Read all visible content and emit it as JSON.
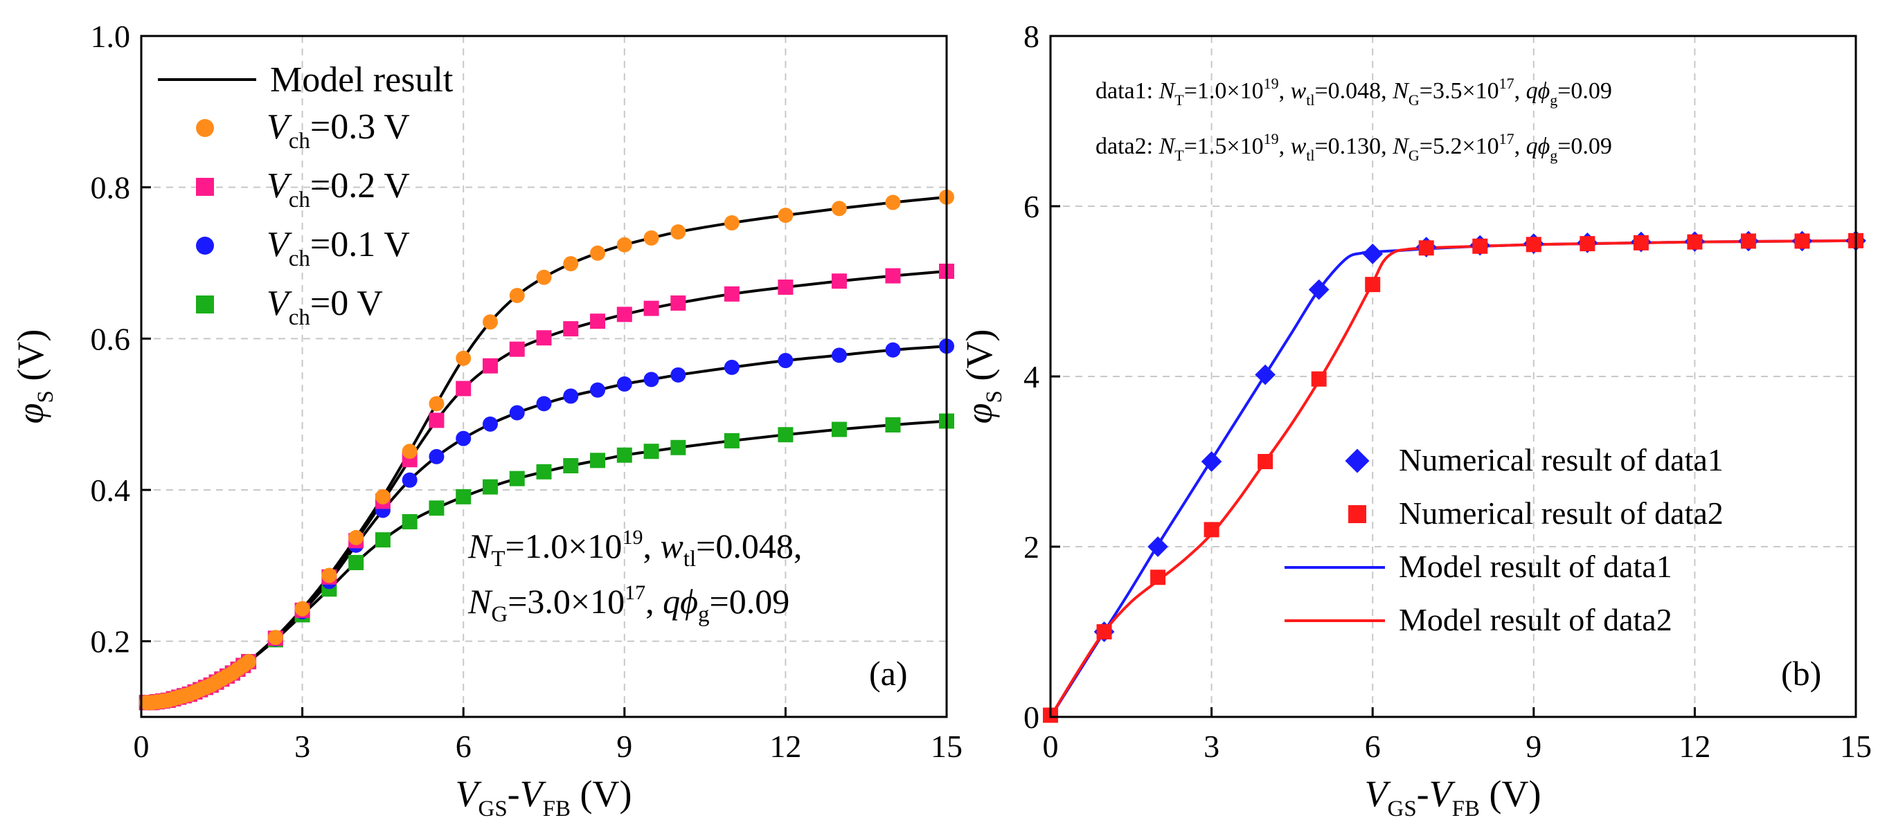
{
  "chart_data": [
    {
      "type": "line",
      "panel_label": "(a)",
      "xlabel": "VGS-VFB (V)",
      "xlabel_parts": {
        "v1": "V",
        "s1": "GS",
        "dash": "-",
        "v2": "V",
        "s2": "FB",
        "unit": " (V)"
      },
      "ylabel": "φS (V)",
      "ylabel_parts": {
        "phi": "φ",
        "s": "S",
        "unit": " (V)"
      },
      "xlim": [
        0,
        15
      ],
      "ylim": [
        0.1,
        1.0
      ],
      "x_ticks": [
        "0",
        "3",
        "6",
        "9",
        "12",
        "15"
      ],
      "y_ticks": [
        "0.2",
        "0.4",
        "0.6",
        "0.8",
        "1.0"
      ],
      "grid": true,
      "legend_position": "top-left",
      "legend": {
        "model": "Model result",
        "entries": [
          {
            "v": "V",
            "sub": "ch",
            "rest": "=0.3 V"
          },
          {
            "v": "V",
            "sub": "ch",
            "rest": "=0.2 V"
          },
          {
            "v": "V",
            "sub": "ch",
            "rest": "=0.1 V"
          },
          {
            "v": "V",
            "sub": "ch",
            "rest": "=0 V"
          }
        ]
      },
      "annotation": {
        "line1": {
          "n": "N",
          "n_sub": "T",
          "eq": "=1.0×10",
          "exp": "19",
          "comma": ", ",
          "w": "w",
          "w_sub": "tl",
          "w_val": "=0.048,"
        },
        "line2": {
          "n": "N",
          "n_sub": "G",
          "eq": "=3.0×10",
          "exp": "17",
          "comma": ", ",
          "q": "qϕ",
          "q_sub": "g",
          "q_val": "=0.09"
        }
      },
      "series": [
        {
          "name": "Vch=0.3 V",
          "marker": "circle",
          "color": "#ff8c1a",
          "x": [
            0.1,
            0.2,
            0.3,
            0.4,
            0.5,
            0.6,
            0.7,
            0.8,
            0.9,
            1.0,
            1.1,
            1.2,
            1.3,
            1.4,
            1.5,
            1.6,
            1.7,
            1.8,
            1.9,
            2.0,
            2.5,
            3.0,
            3.5,
            4.0,
            4.5,
            5.0,
            5.5,
            6.0,
            6.5,
            7.0,
            7.5,
            8.0,
            8.5,
            9.0,
            9.5,
            10.0,
            11.0,
            12.0,
            13.0,
            14.0,
            15.0
          ],
          "y": [
            0.119,
            0.119,
            0.12,
            0.121,
            0.122,
            0.124,
            0.126,
            0.128,
            0.13,
            0.133,
            0.136,
            0.139,
            0.142,
            0.146,
            0.15,
            0.154,
            0.158,
            0.163,
            0.168,
            0.173,
            0.205,
            0.243,
            0.287,
            0.337,
            0.391,
            0.451,
            0.514,
            0.574,
            0.622,
            0.657,
            0.681,
            0.699,
            0.713,
            0.724,
            0.733,
            0.741,
            0.753,
            0.763,
            0.772,
            0.78,
            0.787
          ]
        },
        {
          "name": "Vch=0.2 V",
          "marker": "square",
          "color": "#ff1a8c",
          "x": [
            0.1,
            0.2,
            0.3,
            0.4,
            0.5,
            0.6,
            0.7,
            0.8,
            0.9,
            1.0,
            1.1,
            1.2,
            1.3,
            1.4,
            1.5,
            1.6,
            1.7,
            1.8,
            1.9,
            2.0,
            2.5,
            3.0,
            3.5,
            4.0,
            4.5,
            5.0,
            5.5,
            6.0,
            6.5,
            7.0,
            7.5,
            8.0,
            8.5,
            9.0,
            9.5,
            10.0,
            11.0,
            12.0,
            13.0,
            14.0,
            15.0
          ],
          "y": [
            0.119,
            0.119,
            0.12,
            0.121,
            0.122,
            0.124,
            0.126,
            0.128,
            0.13,
            0.133,
            0.136,
            0.139,
            0.142,
            0.146,
            0.15,
            0.154,
            0.158,
            0.163,
            0.168,
            0.173,
            0.204,
            0.241,
            0.285,
            0.333,
            0.385,
            0.44,
            0.492,
            0.534,
            0.564,
            0.586,
            0.601,
            0.613,
            0.623,
            0.632,
            0.64,
            0.647,
            0.659,
            0.668,
            0.676,
            0.683,
            0.689
          ]
        },
        {
          "name": "Vch=0.1 V",
          "marker": "circle",
          "color": "#1a1aff",
          "x": [
            0.1,
            0.2,
            0.3,
            0.4,
            0.5,
            0.6,
            0.7,
            0.8,
            0.9,
            1.0,
            1.1,
            1.2,
            1.3,
            1.4,
            1.5,
            1.6,
            1.7,
            1.8,
            1.9,
            2.0,
            2.5,
            3.0,
            3.5,
            4.0,
            4.5,
            5.0,
            5.5,
            6.0,
            6.5,
            7.0,
            7.5,
            8.0,
            8.5,
            9.0,
            9.5,
            10.0,
            11.0,
            12.0,
            13.0,
            14.0,
            15.0
          ],
          "y": [
            0.119,
            0.119,
            0.12,
            0.121,
            0.122,
            0.124,
            0.126,
            0.128,
            0.13,
            0.133,
            0.136,
            0.139,
            0.142,
            0.146,
            0.15,
            0.154,
            0.158,
            0.163,
            0.168,
            0.173,
            0.203,
            0.239,
            0.279,
            0.327,
            0.373,
            0.413,
            0.444,
            0.468,
            0.487,
            0.502,
            0.514,
            0.524,
            0.532,
            0.54,
            0.546,
            0.552,
            0.562,
            0.571,
            0.578,
            0.585,
            0.59
          ]
        },
        {
          "name": "Vch=0 V",
          "marker": "square",
          "color": "#1aae1a",
          "x": [
            0.1,
            0.2,
            0.3,
            0.4,
            0.5,
            0.6,
            0.7,
            0.8,
            0.9,
            1.0,
            1.1,
            1.2,
            1.3,
            1.4,
            1.5,
            1.6,
            1.7,
            1.8,
            1.9,
            2.0,
            2.5,
            3.0,
            3.5,
            4.0,
            4.5,
            5.0,
            5.5,
            6.0,
            6.5,
            7.0,
            7.5,
            8.0,
            8.5,
            9.0,
            9.5,
            10.0,
            11.0,
            12.0,
            13.0,
            14.0,
            15.0
          ],
          "y": [
            0.119,
            0.119,
            0.12,
            0.121,
            0.122,
            0.124,
            0.126,
            0.128,
            0.13,
            0.133,
            0.136,
            0.139,
            0.142,
            0.146,
            0.15,
            0.154,
            0.158,
            0.163,
            0.168,
            0.173,
            0.202,
            0.235,
            0.269,
            0.304,
            0.334,
            0.358,
            0.376,
            0.391,
            0.404,
            0.415,
            0.424,
            0.432,
            0.439,
            0.446,
            0.451,
            0.456,
            0.465,
            0.473,
            0.48,
            0.486,
            0.491
          ]
        }
      ]
    },
    {
      "type": "line",
      "panel_label": "(b)",
      "xlabel": "VGS-VFB (V)",
      "xlabel_parts": {
        "v1": "V",
        "s1": "GS",
        "dash": "-",
        "v2": "V",
        "s2": "FB",
        "unit": " (V)"
      },
      "ylabel": "φS (V)",
      "ylabel_parts": {
        "phi": "φ",
        "s": "S",
        "unit": " (V)"
      },
      "xlim": [
        0,
        15
      ],
      "ylim": [
        0,
        8
      ],
      "x_ticks": [
        "0",
        "3",
        "6",
        "9",
        "12",
        "15"
      ],
      "y_ticks": [
        "0",
        "2",
        "4",
        "6",
        "8"
      ],
      "grid": true,
      "legend_position": "bottom-right",
      "params": {
        "data1": {
          "label": "data1: ",
          "n": "N",
          "n_sub": "T",
          "n_val": "=1.0×10",
          "n_exp": "19",
          "w": "w",
          "w_sub": "tl",
          "w_val": "=0.048, ",
          "g": "N",
          "g_sub": "G",
          "g_val": "=3.5×10",
          "g_exp": "17",
          "q": "qϕ",
          "q_sub": "g",
          "q_val": "=0.09",
          "sep1": ", ",
          "sep2": ", "
        },
        "data2": {
          "label": "data2: ",
          "n": "N",
          "n_sub": "T",
          "n_val": "=1.5×10",
          "n_exp": "19",
          "w": "w",
          "w_sub": "tl",
          "w_val": "=0.130, ",
          "g": "N",
          "g_sub": "G",
          "g_val": "=5.2×10",
          "g_exp": "17",
          "q": "qϕ",
          "q_sub": "g",
          "q_val": "=0.09",
          "sep1": ", ",
          "sep2": ", "
        }
      },
      "legend": [
        {
          "label": "Numerical result of data1",
          "kind": "marker",
          "marker": "diamond",
          "color": "#1a1aff"
        },
        {
          "label": "Numerical result of data2",
          "kind": "marker",
          "marker": "square",
          "color": "#ff1a1a"
        },
        {
          "label": "Model result of data1",
          "kind": "line",
          "color": "#1a1aff"
        },
        {
          "label": "Model result of data2",
          "kind": "line",
          "color": "#ff1a1a"
        }
      ],
      "series": [
        {
          "name": "Numerical result of data1",
          "marker": "diamond",
          "color": "#1a1aff",
          "x": [
            1,
            2,
            3,
            4,
            5,
            6,
            7,
            8,
            9,
            10,
            11,
            12,
            13,
            14,
            15
          ],
          "y": [
            1.0,
            2.0,
            3.0,
            4.02,
            5.02,
            5.44,
            5.52,
            5.54,
            5.56,
            5.57,
            5.58,
            5.585,
            5.59,
            5.59,
            5.595
          ]
        },
        {
          "name": "Numerical result of data2",
          "marker": "square",
          "color": "#ff1a1a",
          "x": [
            0,
            1,
            2,
            3,
            4,
            5,
            6,
            7,
            8,
            9,
            10,
            11,
            12,
            13,
            14,
            15
          ],
          "y": [
            0.02,
            1.0,
            1.64,
            2.2,
            3.0,
            3.97,
            5.08,
            5.51,
            5.53,
            5.55,
            5.56,
            5.57,
            5.58,
            5.59,
            5.59,
            5.595
          ]
        },
        {
          "name": "Model result of data1",
          "color": "#1a1aff",
          "x": [
            0,
            0.5,
            1,
            1.5,
            2,
            2.5,
            3,
            3.5,
            4,
            4.5,
            5,
            5.5,
            5.8,
            6.0,
            6.2,
            6.5,
            7,
            8,
            9,
            10,
            11,
            12,
            13,
            14,
            15
          ],
          "y": [
            0,
            0.5,
            1.0,
            1.5,
            2.02,
            2.52,
            3.02,
            3.52,
            4.02,
            4.52,
            5.02,
            5.38,
            5.45,
            5.46,
            5.47,
            5.48,
            5.5,
            5.53,
            5.55,
            5.56,
            5.57,
            5.58,
            5.585,
            5.59,
            5.595
          ]
        },
        {
          "name": "Model result of data2",
          "color": "#ff1a1a",
          "x": [
            0,
            0.5,
            1,
            1.5,
            2,
            2.5,
            3,
            3.5,
            4,
            4.5,
            5,
            5.5,
            6.0,
            6.2,
            6.4,
            6.6,
            7,
            8,
            9,
            10,
            11,
            12,
            13,
            14,
            15
          ],
          "y": [
            0,
            0.52,
            1.0,
            1.35,
            1.6,
            1.85,
            2.15,
            2.55,
            3.0,
            3.45,
            3.95,
            4.5,
            5.1,
            5.35,
            5.46,
            5.49,
            5.51,
            5.53,
            5.55,
            5.56,
            5.57,
            5.58,
            5.585,
            5.59,
            5.595
          ]
        }
      ]
    }
  ]
}
